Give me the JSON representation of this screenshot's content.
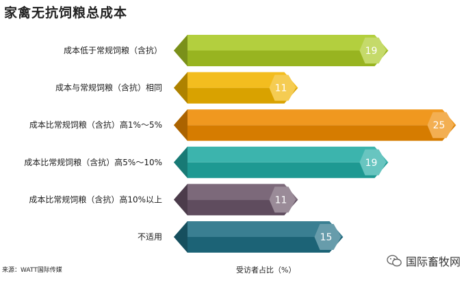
{
  "chart_data": {
    "type": "bar",
    "orientation": "horizontal",
    "title": "家禽无抗饲粮总成本",
    "xlabel": "受访者占比（%）",
    "categories": [
      "成本低于常规饲粮（含抗）",
      "成本与常规饲粮（含抗）相同",
      "成本比常规饲粮（含抗）高1%～5%",
      "成本比常规饲粮（含抗）高5%～10%",
      "成本比常规饲粮（含抗）高10%以上",
      "不适用"
    ],
    "values": [
      19,
      11,
      25,
      19,
      11,
      15
    ],
    "colors": [
      "#a9c824",
      "#f1b400",
      "#ee8a00",
      "#21aaa2",
      "#6a5468",
      "#1f6e83"
    ],
    "grid": false,
    "legend": "none"
  },
  "source": "来源：WATT国际传媒",
  "brand": {
    "name": "国际畜牧网",
    "icon": "wechat-icon"
  }
}
